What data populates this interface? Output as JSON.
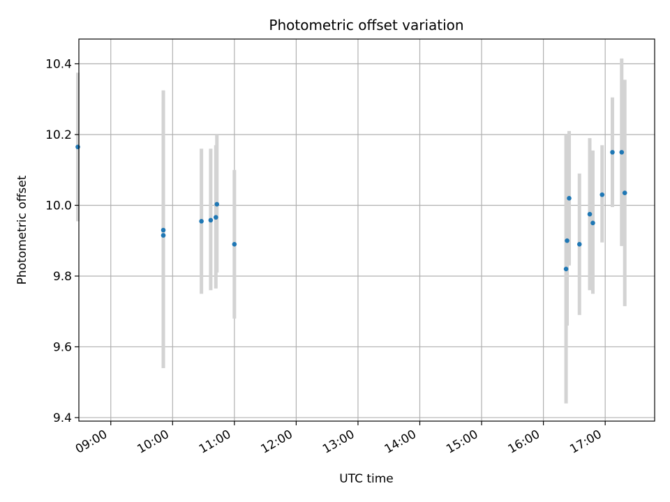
{
  "chart_data": {
    "type": "scatter",
    "title": "Photometric offset variation",
    "xlabel": "UTC time",
    "ylabel": "Photometric offset",
    "grid": true,
    "x_axis_type": "time",
    "xlim": [
      "08:29",
      "17:48"
    ],
    "ylim": [
      9.39,
      10.47
    ],
    "x_ticks": [
      "09:00",
      "10:00",
      "11:00",
      "12:00",
      "13:00",
      "14:00",
      "15:00",
      "16:00",
      "17:00"
    ],
    "y_ticks": [
      9.4,
      9.6,
      9.8,
      10.0,
      10.2,
      10.4
    ],
    "y_tick_labels": [
      "9.4",
      "9.6",
      "9.8",
      "10.0",
      "10.2",
      "10.4"
    ],
    "colors": {
      "marker": "#1f77b4",
      "errorbar": "#d3d3d3"
    },
    "series": [
      {
        "points": [
          {
            "x": "08:28",
            "y": 10.165,
            "yerr_low": 9.955,
            "yerr_high": 10.375
          },
          {
            "x": "09:51",
            "y": 9.93,
            "yerr_low": 9.54,
            "yerr_high": 10.325
          },
          {
            "x": "09:51",
            "y": 9.915,
            "yerr_low": 9.54,
            "yerr_high": 10.29
          },
          {
            "x": "10:28",
            "y": 9.955,
            "yerr_low": 9.75,
            "yerr_high": 10.16
          },
          {
            "x": "10:37",
            "y": 9.958,
            "yerr_low": 9.76,
            "yerr_high": 10.16
          },
          {
            "x": "10:42",
            "y": 9.966,
            "yerr_low": 9.765,
            "yerr_high": 10.17
          },
          {
            "x": "10:43",
            "y": 10.003,
            "yerr_low": 9.81,
            "yerr_high": 10.2
          },
          {
            "x": "11:00",
            "y": 9.89,
            "yerr_low": 9.68,
            "yerr_high": 10.1
          },
          {
            "x": "16:22",
            "y": 9.82,
            "yerr_low": 9.44,
            "yerr_high": 10.2
          },
          {
            "x": "16:23",
            "y": 9.9,
            "yerr_low": 9.66,
            "yerr_high": 10.14
          },
          {
            "x": "16:25",
            "y": 10.02,
            "yerr_low": 9.83,
            "yerr_high": 10.21
          },
          {
            "x": "16:35",
            "y": 9.89,
            "yerr_low": 9.69,
            "yerr_high": 10.09
          },
          {
            "x": "16:45",
            "y": 9.975,
            "yerr_low": 9.76,
            "yerr_high": 10.19
          },
          {
            "x": "16:48",
            "y": 9.95,
            "yerr_low": 9.75,
            "yerr_high": 10.155
          },
          {
            "x": "16:57",
            "y": 10.03,
            "yerr_low": 9.895,
            "yerr_high": 10.17
          },
          {
            "x": "17:07",
            "y": 10.15,
            "yerr_low": 9.995,
            "yerr_high": 10.305
          },
          {
            "x": "17:16",
            "y": 10.15,
            "yerr_low": 9.885,
            "yerr_high": 10.415
          },
          {
            "x": "17:19",
            "y": 10.035,
            "yerr_low": 9.715,
            "yerr_high": 10.355
          }
        ]
      }
    ]
  }
}
